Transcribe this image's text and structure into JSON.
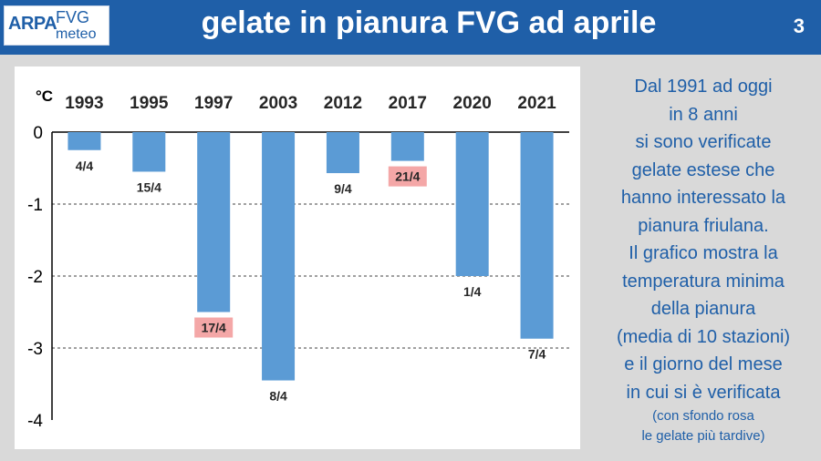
{
  "header": {
    "logo": {
      "arpa": "ARPA",
      "fvg": "FVG",
      "meteo": "meteo"
    },
    "title": "gelate in pianura FVG ad aprile",
    "page_number": "3"
  },
  "colors": {
    "header": "#1f5fa8",
    "bar": "#5b9bd5",
    "highlight": "#f4a7a7",
    "text_side": "#1f5fa8"
  },
  "chart_data": {
    "type": "bar",
    "unit_label": "°C",
    "categories": [
      "1993",
      "1995",
      "1997",
      "2003",
      "2012",
      "2017",
      "2020",
      "2021"
    ],
    "values": [
      -0.25,
      -0.55,
      -2.5,
      -3.45,
      -0.57,
      -0.4,
      -2.0,
      -2.87
    ],
    "data_labels": [
      "4/4",
      "15/4",
      "17/4",
      "8/4",
      "9/4",
      "21/4",
      "1/4",
      "7/4"
    ],
    "highlighted": [
      false,
      false,
      true,
      false,
      false,
      true,
      false,
      false
    ],
    "ylim": [
      -4,
      0
    ],
    "yticks": [
      "0",
      "-1",
      "-2",
      "-3",
      "-4"
    ],
    "grid": "dashed horizontal",
    "categories_position": "top"
  },
  "side_text": {
    "lines": [
      "Dal 1991 ad oggi",
      "in  8 anni",
      "si sono verificate",
      "gelate estese che",
      "hanno interessato la",
      "pianura friulana.",
      "Il grafico mostra la",
      "temperatura minima",
      "della pianura",
      "(media di 10 stazioni)",
      "e il giorno del mese",
      "in cui si è verificata"
    ],
    "note_lines": [
      "(con sfondo rosa",
      "le gelate più tardive)"
    ]
  }
}
